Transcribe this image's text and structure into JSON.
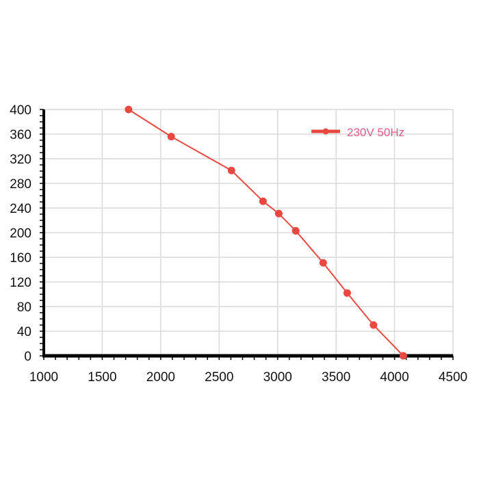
{
  "chart_data": {
    "type": "line",
    "title": "",
    "xlabel": "",
    "ylabel": "",
    "xlim": [
      1000,
      4500
    ],
    "ylim": [
      0,
      400
    ],
    "x_ticks": [
      1000,
      1500,
      2000,
      2500,
      3000,
      3500,
      4000,
      4500
    ],
    "y_ticks": [
      0,
      40,
      80,
      120,
      160,
      200,
      240,
      280,
      320,
      360,
      400
    ],
    "grid": true,
    "legend_position": "top-right",
    "series": [
      {
        "name": "230V 50Hz",
        "color": "#e8483f",
        "legend_text_color": "#e05a8a",
        "x": [
          1725,
          2090,
          2605,
          2875,
          3010,
          3155,
          3390,
          3595,
          3820,
          4075
        ],
        "y": [
          400,
          356,
          301,
          251,
          231,
          203,
          151,
          102,
          50,
          0
        ]
      }
    ]
  }
}
